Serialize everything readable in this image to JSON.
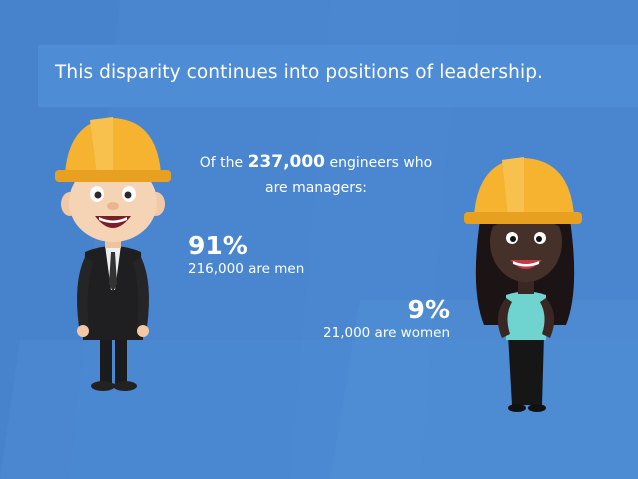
{
  "title": "This disparity continues into positions of leadership.",
  "intro": {
    "prefix": "Of the",
    "number": "237,000",
    "suffix": "engineers who",
    "line2": "are managers:"
  },
  "men": {
    "percent": "91%",
    "caption": "216,000 are men"
  },
  "women": {
    "percent": "9%",
    "caption": "21,000 are women"
  },
  "colors": {
    "background": "#4a86cf",
    "helmet": "#f6b330",
    "text": "#ffffff"
  }
}
